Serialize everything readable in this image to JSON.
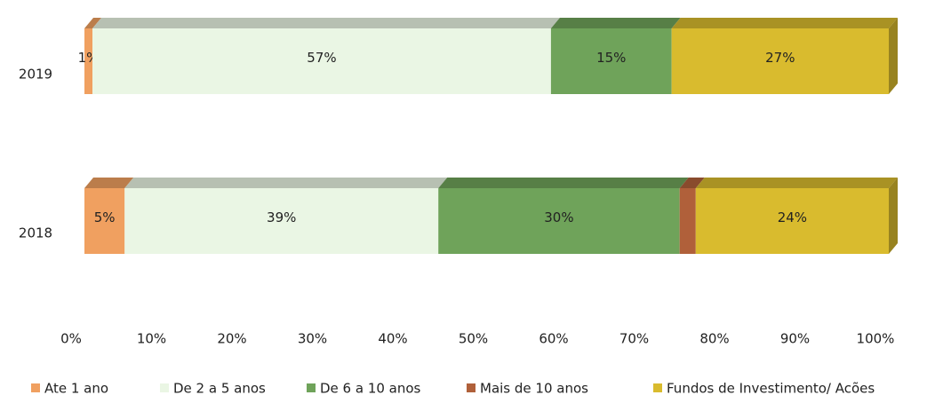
{
  "chart_data": {
    "type": "stacked-bar-horizontal",
    "categories": [
      "2019",
      "2018"
    ],
    "series": [
      {
        "name": "Ate 1 ano",
        "color": "#f0a060",
        "values": [
          1,
          5
        ],
        "value_labels": [
          "1%",
          "5%"
        ]
      },
      {
        "name": "De 2 a 5 anos",
        "color": "#eaf6e4",
        "values": [
          57,
          39
        ],
        "value_labels": [
          "57%",
          "39%"
        ]
      },
      {
        "name": "De 6 a 10 anos",
        "color": "#6fa35a",
        "values": [
          15,
          30
        ],
        "value_labels": [
          "15%",
          "30%"
        ]
      },
      {
        "name": "Mais de 10 anos",
        "color": "#b0603a",
        "values": [
          0,
          2
        ]
      },
      {
        "name": "Fundos de Investimento/ Acões",
        "color": "#d9bb2e",
        "values": [
          27,
          24
        ],
        "value_labels": [
          "27%",
          "24%"
        ]
      }
    ],
    "xlim": [
      0,
      100
    ],
    "xticks": [
      {
        "value": 0,
        "label": "0%"
      },
      {
        "value": 10,
        "label": "10%"
      },
      {
        "value": 20,
        "label": "20%"
      },
      {
        "value": 30,
        "label": "30%"
      },
      {
        "value": 40,
        "label": "40%"
      },
      {
        "value": 50,
        "label": "50%"
      },
      {
        "value": 60,
        "label": "60%"
      },
      {
        "value": 70,
        "label": "70%"
      },
      {
        "value": 80,
        "label": "80%"
      },
      {
        "value": 90,
        "label": "90%"
      },
      {
        "value": 100,
        "label": "100%"
      }
    ],
    "legend": "bottom"
  }
}
